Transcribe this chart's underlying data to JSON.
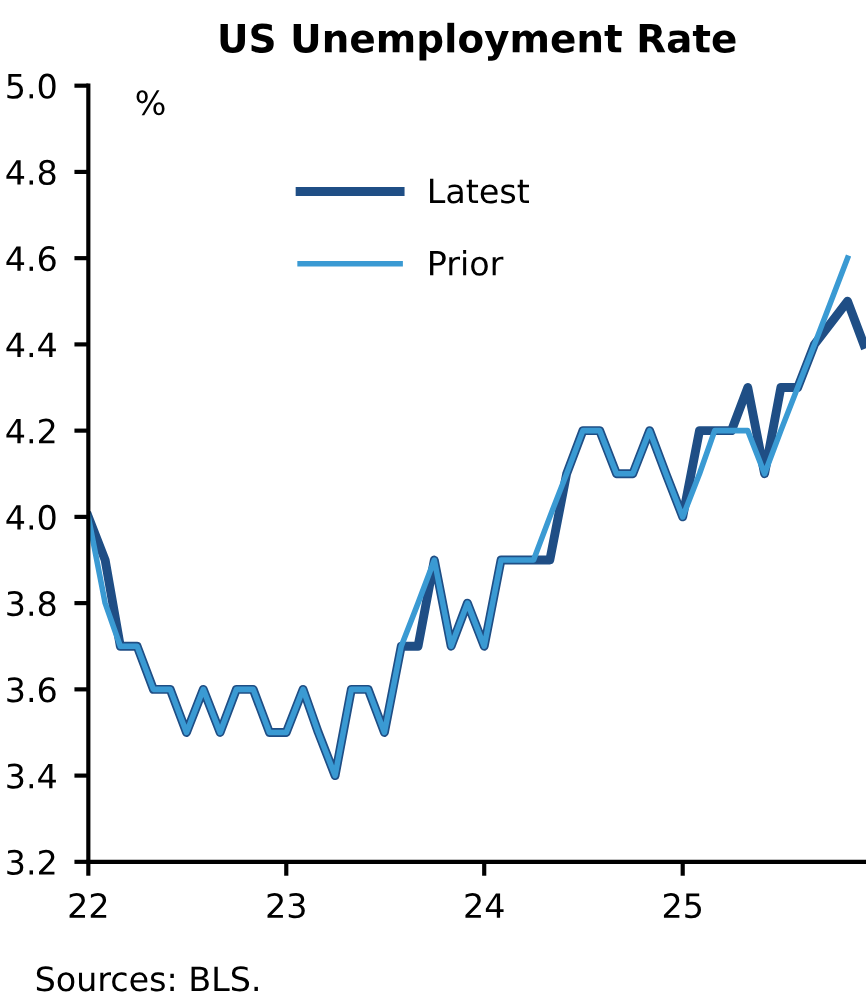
{
  "chart_data": {
    "type": "line",
    "title": "US Unemployment Rate",
    "ylabel": "%",
    "annotations": [
      "Sources: BLS."
    ],
    "series": [
      {
        "name": "Latest",
        "color": "#1f4e85",
        "x": [
          "2022-01",
          "2022-02",
          "2022-03",
          "2022-04",
          "2022-05",
          "2022-06",
          "2022-07",
          "2022-08",
          "2022-09",
          "2022-10",
          "2022-11",
          "2022-12",
          "2023-01",
          "2023-02",
          "2023-03",
          "2023-04",
          "2023-05",
          "2023-06",
          "2023-07",
          "2023-08",
          "2023-09",
          "2023-10",
          "2023-11",
          "2023-12",
          "2024-01",
          "2024-02",
          "2024-03",
          "2024-04",
          "2024-05",
          "2024-06",
          "2024-07",
          "2024-08",
          "2024-09",
          "2024-10",
          "2024-11",
          "2024-12",
          "2025-01",
          "2025-02",
          "2025-03",
          "2025-04",
          "2025-05",
          "2025-06",
          "2025-07",
          "2025-08",
          "2025-09",
          "2025-11",
          "2025-12"
        ],
        "values": [
          4.0,
          3.9,
          3.7,
          3.7,
          3.6,
          3.6,
          3.5,
          3.6,
          3.5,
          3.6,
          3.6,
          3.5,
          3.5,
          3.6,
          3.5,
          3.4,
          3.6,
          3.6,
          3.5,
          3.7,
          3.7,
          3.9,
          3.7,
          3.8,
          3.7,
          3.9,
          3.9,
          3.9,
          3.9,
          4.1,
          4.2,
          4.2,
          4.1,
          4.1,
          4.2,
          4.1,
          4.0,
          4.2,
          4.2,
          4.2,
          4.3,
          4.1,
          4.3,
          4.3,
          4.4,
          4.5,
          4.4
        ]
      },
      {
        "name": "Prior",
        "color": "#3a9ad3",
        "x": [
          "2022-01",
          "2022-02",
          "2022-03",
          "2022-04",
          "2022-05",
          "2022-06",
          "2022-07",
          "2022-08",
          "2022-09",
          "2022-10",
          "2022-11",
          "2022-12",
          "2023-01",
          "2023-02",
          "2023-03",
          "2023-04",
          "2023-05",
          "2023-06",
          "2023-07",
          "2023-08",
          "2023-09",
          "2023-10",
          "2023-11",
          "2023-12",
          "2024-01",
          "2024-02",
          "2024-03",
          "2024-04",
          "2024-05",
          "2024-06",
          "2024-07",
          "2024-08",
          "2024-09",
          "2024-10",
          "2024-11",
          "2024-12",
          "2025-01",
          "2025-02",
          "2025-03",
          "2025-04",
          "2025-05",
          "2025-06",
          "2025-07",
          "2025-08",
          "2025-09",
          "2025-11"
        ],
        "values": [
          4.0,
          3.8,
          3.7,
          3.7,
          3.6,
          3.6,
          3.5,
          3.6,
          3.5,
          3.6,
          3.6,
          3.5,
          3.5,
          3.6,
          3.5,
          3.4,
          3.6,
          3.6,
          3.5,
          3.7,
          3.8,
          3.9,
          3.7,
          3.8,
          3.7,
          3.9,
          3.9,
          3.9,
          4.0,
          4.1,
          4.2,
          4.2,
          4.1,
          4.1,
          4.2,
          4.1,
          4.0,
          4.1,
          4.2,
          4.2,
          4.2,
          4.1,
          4.2,
          4.3,
          4.4,
          4.6
        ]
      }
    ],
    "xlim": [
      "2022-01-01",
      "2025-12-05"
    ],
    "xticks": [
      {
        "value": "2022-01-01",
        "label": "22"
      },
      {
        "value": "2023-01-01",
        "label": "23"
      },
      {
        "value": "2024-01-01",
        "label": "24"
      },
      {
        "value": "2025-01-01",
        "label": "25"
      }
    ],
    "ylim": [
      3.2,
      5.0
    ],
    "yticks": [
      {
        "value": 3.2,
        "label": "3.2"
      },
      {
        "value": 3.4,
        "label": "3.4"
      },
      {
        "value": 3.6,
        "label": "3.6"
      },
      {
        "value": 3.8,
        "label": "3.8"
      },
      {
        "value": 4.0,
        "label": "4.0"
      },
      {
        "value": 4.2,
        "label": "4.2"
      },
      {
        "value": 4.4,
        "label": "4.4"
      },
      {
        "value": 4.6,
        "label": "4.6"
      },
      {
        "value": 4.8,
        "label": "4.8"
      },
      {
        "value": 5.0,
        "label": "5.0"
      }
    ],
    "grid": false,
    "legend": "top",
    "marker": "none",
    "line_style": "solid"
  }
}
